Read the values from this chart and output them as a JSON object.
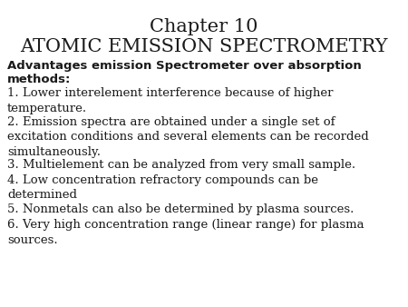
{
  "title_line1": "Chapter 10",
  "title_line2": "ATOMIC EMISSION SPECTROMETRY",
  "title_fontsize": 15,
  "title_font": "serif",
  "bg_color": "#ffffff",
  "text_color": "#1a1a1a",
  "bold_heading_line1": "Advantages emission Spectrometer over absorption",
  "bold_heading_line2": "methods:",
  "bold_heading_fontsize": 9.5,
  "body_fontsize": 9.5,
  "body_font": "serif",
  "items": [
    "1. Lower interelement interference because of higher\ntemperature.",
    "2. Emission spectra are obtained under a single set of\nexcitation conditions and several elements can be recorded\nsimultaneously.",
    "3. Multielement can be analyzed from very small sample.",
    "4. Low concentration refractory compounds can be\ndetermined",
    "5. Nonmetals can also be determined by plasma sources.",
    "6. Very high concentration range (linear range) for plasma\nsources."
  ]
}
